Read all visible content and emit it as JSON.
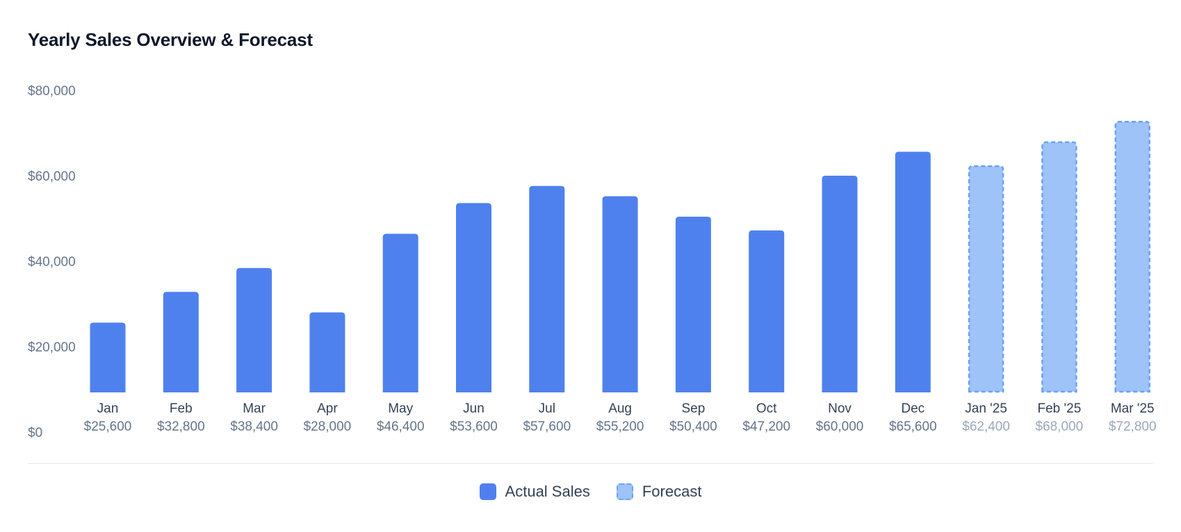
{
  "chart_data": {
    "type": "bar",
    "title": "Yearly Sales Overview & Forecast",
    "xlabel": "",
    "ylabel": "",
    "ylim": [
      0,
      80000
    ],
    "y_ticks": [
      "$0",
      "$20,000",
      "$40,000",
      "$60,000",
      "$80,000"
    ],
    "y_tick_values": [
      0,
      20000,
      40000,
      60000,
      80000
    ],
    "grid": false,
    "legend_position": "bottom-center",
    "categories": [
      "Jan",
      "Feb",
      "Mar",
      "Apr",
      "May",
      "Jun",
      "Jul",
      "Aug",
      "Sep",
      "Oct",
      "Nov",
      "Dec",
      "Jan '25",
      "Feb '25",
      "Mar '25"
    ],
    "value_labels": [
      "$25,600",
      "$32,800",
      "$38,400",
      "$28,000",
      "$46,400",
      "$53,600",
      "$57,600",
      "$55,200",
      "$50,400",
      "$47,200",
      "$60,000",
      "$65,600",
      "$62,400",
      "$68,000",
      "$72,800"
    ],
    "series": [
      {
        "name": "Actual Sales",
        "values": [
          25600,
          32800,
          38400,
          28000,
          46400,
          53600,
          57600,
          55200,
          50400,
          47200,
          60000,
          65600,
          null,
          null,
          null
        ],
        "color": "#4f81ee",
        "style": "solid"
      },
      {
        "name": "Forecast",
        "values": [
          null,
          null,
          null,
          null,
          null,
          null,
          null,
          null,
          null,
          null,
          null,
          null,
          62400,
          68000,
          72800
        ],
        "color": "#9dc3f8",
        "border_color": "#6aa1f3",
        "style": "dashed"
      }
    ]
  },
  "legend": [
    {
      "label": "Actual Sales",
      "color": "#4f81ee",
      "style": "solid"
    },
    {
      "label": "Forecast",
      "color": "#9dc3f8",
      "border_color": "#6aa1f3",
      "style": "dashed"
    }
  ]
}
